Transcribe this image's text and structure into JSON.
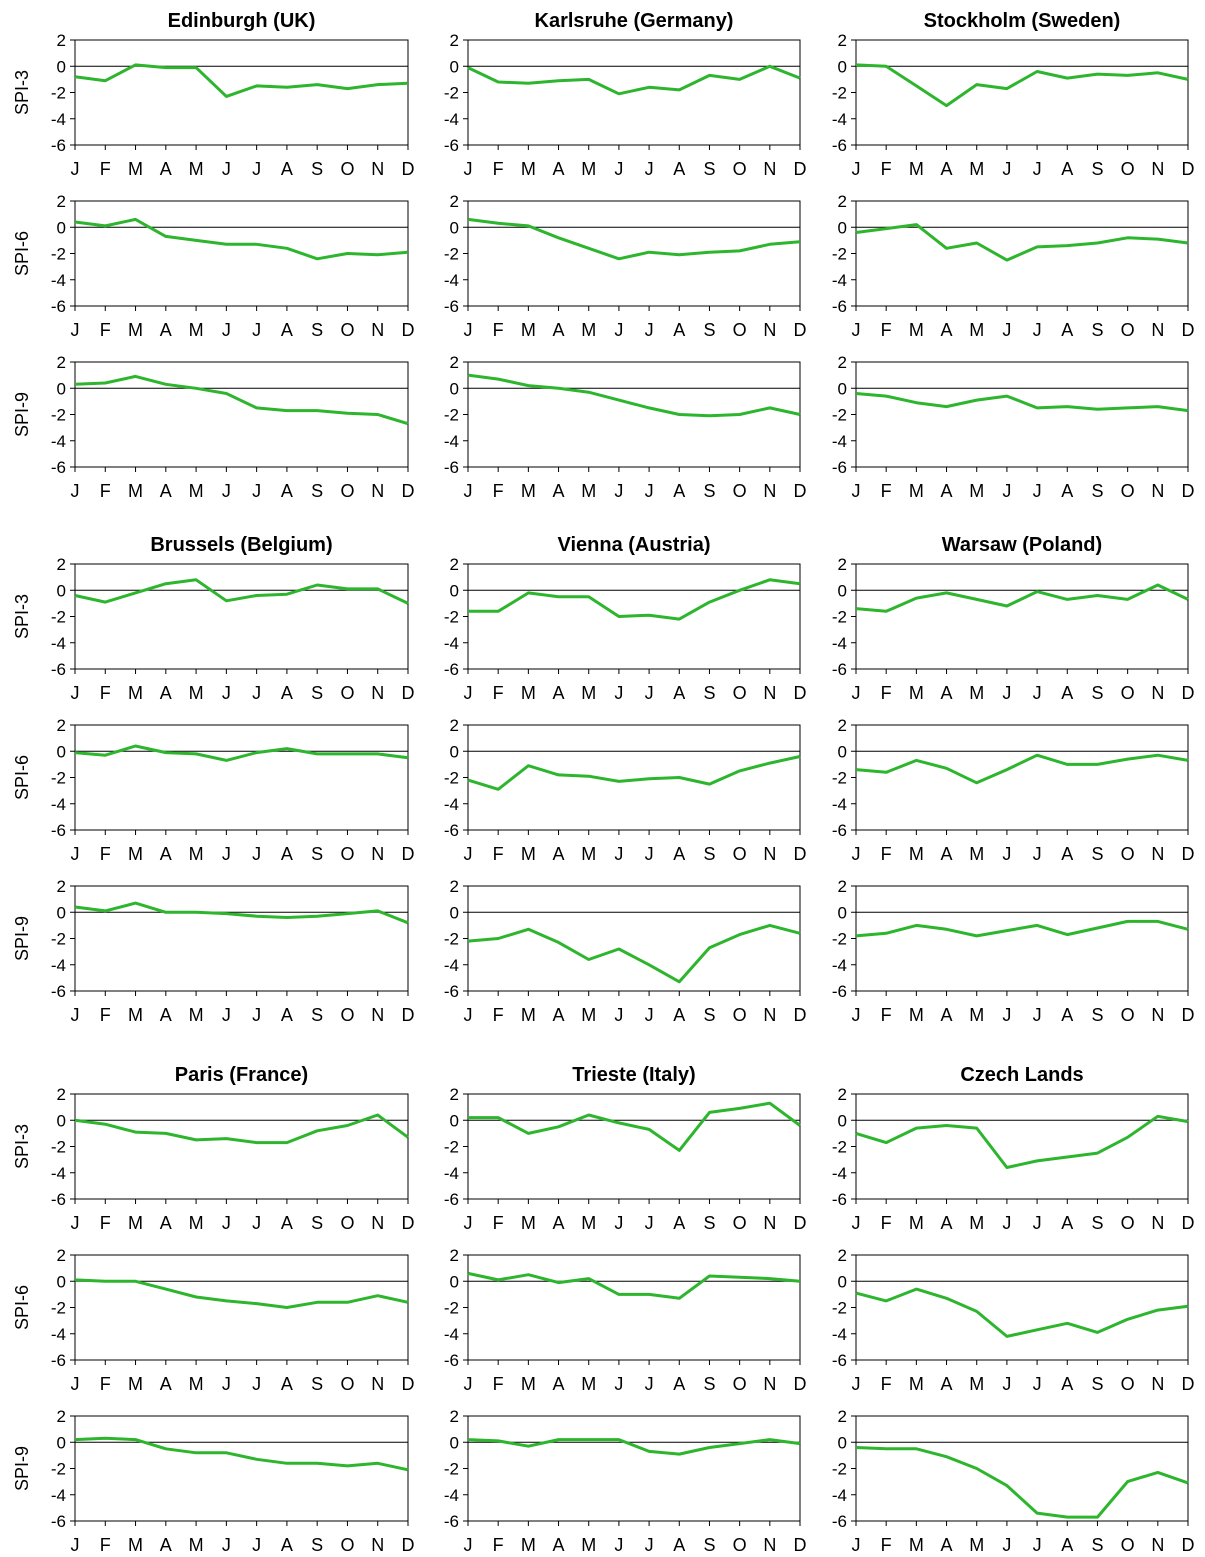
{
  "colors": {
    "line": "#2db52d",
    "axis": "#000000",
    "zero_line": "#000000",
    "text": "#000000"
  },
  "months": [
    "J",
    "F",
    "M",
    "A",
    "M",
    "J",
    "J",
    "A",
    "S",
    "O",
    "N",
    "D"
  ],
  "y_ticks": [
    "2",
    "0",
    "-2",
    "-4",
    "-6"
  ],
  "indices": [
    "SPI-3",
    "SPI-6",
    "SPI-9"
  ],
  "chart_data": [
    {
      "type": "line",
      "title": "Edinburgh (UK)",
      "group": 0,
      "col": 0,
      "ylim": [
        -6,
        2
      ],
      "categories": [
        "J",
        "F",
        "M",
        "A",
        "M",
        "J",
        "J",
        "A",
        "S",
        "O",
        "N",
        "D"
      ],
      "series": [
        {
          "name": "SPI-3",
          "values": [
            -0.8,
            -1.1,
            0.1,
            -0.1,
            -0.1,
            -2.3,
            -1.5,
            -1.6,
            -1.4,
            -1.7,
            -1.4,
            -1.3
          ]
        },
        {
          "name": "SPI-6",
          "values": [
            0.4,
            0.1,
            0.6,
            -0.7,
            -1.0,
            -1.3,
            -1.3,
            -1.6,
            -2.4,
            -2.0,
            -2.1,
            -1.9
          ]
        },
        {
          "name": "SPI-9",
          "values": [
            0.3,
            0.4,
            0.9,
            0.3,
            0.0,
            -0.4,
            -1.5,
            -1.7,
            -1.7,
            -1.9,
            -2.0,
            -2.7
          ]
        }
      ]
    },
    {
      "type": "line",
      "title": "Karlsruhe (Germany)",
      "group": 0,
      "col": 1,
      "ylim": [
        -6,
        2
      ],
      "categories": [
        "J",
        "F",
        "M",
        "A",
        "M",
        "J",
        "J",
        "A",
        "S",
        "O",
        "N",
        "D"
      ],
      "series": [
        {
          "name": "SPI-3",
          "values": [
            -0.1,
            -1.2,
            -1.3,
            -1.1,
            -1.0,
            -2.1,
            -1.6,
            -1.8,
            -0.7,
            -1.0,
            0.0,
            -0.9
          ]
        },
        {
          "name": "SPI-6",
          "values": [
            0.6,
            0.3,
            0.1,
            -0.8,
            -1.6,
            -2.4,
            -1.9,
            -2.1,
            -1.9,
            -1.8,
            -1.3,
            -1.1
          ]
        },
        {
          "name": "SPI-9",
          "values": [
            1.0,
            0.7,
            0.2,
            0.0,
            -0.3,
            -0.9,
            -1.5,
            -2.0,
            -2.1,
            -2.0,
            -1.5,
            -2.0
          ]
        }
      ]
    },
    {
      "type": "line",
      "title": "Stockholm (Sweden)",
      "group": 0,
      "col": 2,
      "ylim": [
        -6,
        2
      ],
      "categories": [
        "J",
        "F",
        "M",
        "A",
        "M",
        "J",
        "J",
        "A",
        "S",
        "O",
        "N",
        "D"
      ],
      "series": [
        {
          "name": "SPI-3",
          "values": [
            0.1,
            0.0,
            -1.5,
            -3.0,
            -1.4,
            -1.7,
            -0.4,
            -0.9,
            -0.6,
            -0.7,
            -0.5,
            -1.0
          ]
        },
        {
          "name": "SPI-6",
          "values": [
            -0.4,
            -0.1,
            0.2,
            -1.6,
            -1.2,
            -2.5,
            -1.5,
            -1.4,
            -1.2,
            -0.8,
            -0.9,
            -1.2
          ]
        },
        {
          "name": "SPI-9",
          "values": [
            -0.4,
            -0.6,
            -1.1,
            -1.4,
            -0.9,
            -0.6,
            -1.5,
            -1.4,
            -1.6,
            -1.5,
            -1.4,
            -1.7
          ]
        }
      ]
    },
    {
      "type": "line",
      "title": "Brussels (Belgium)",
      "group": 1,
      "col": 0,
      "ylim": [
        -6,
        2
      ],
      "categories": [
        "J",
        "F",
        "M",
        "A",
        "M",
        "J",
        "J",
        "A",
        "S",
        "O",
        "N",
        "D"
      ],
      "series": [
        {
          "name": "SPI-3",
          "values": [
            -0.4,
            -0.9,
            -0.2,
            0.5,
            0.8,
            -0.8,
            -0.4,
            -0.3,
            0.4,
            0.1,
            0.1,
            -1.0
          ]
        },
        {
          "name": "SPI-6",
          "values": [
            -0.1,
            -0.3,
            0.4,
            -0.1,
            -0.2,
            -0.7,
            -0.1,
            0.2,
            -0.2,
            -0.2,
            -0.2,
            -0.5
          ]
        },
        {
          "name": "SPI-9",
          "values": [
            0.4,
            0.1,
            0.7,
            0.0,
            0.0,
            -0.1,
            -0.3,
            -0.4,
            -0.3,
            -0.1,
            0.1,
            -0.8
          ]
        }
      ]
    },
    {
      "type": "line",
      "title": "Vienna (Austria)",
      "group": 1,
      "col": 1,
      "ylim": [
        -6,
        2
      ],
      "categories": [
        "J",
        "F",
        "M",
        "A",
        "M",
        "J",
        "J",
        "A",
        "S",
        "O",
        "N",
        "D"
      ],
      "series": [
        {
          "name": "SPI-3",
          "values": [
            -1.6,
            -1.6,
            -0.2,
            -0.5,
            -0.5,
            -2.0,
            -1.9,
            -2.2,
            -0.9,
            0.0,
            0.8,
            0.5
          ]
        },
        {
          "name": "SPI-6",
          "values": [
            -2.2,
            -2.9,
            -1.1,
            -1.8,
            -1.9,
            -2.3,
            -2.1,
            -2.0,
            -2.5,
            -1.5,
            -0.9,
            -0.4
          ]
        },
        {
          "name": "SPI-9",
          "values": [
            -2.2,
            -2.0,
            -1.3,
            -2.3,
            -3.6,
            -2.8,
            -4.0,
            -5.3,
            -2.7,
            -1.7,
            -1.0,
            -1.6
          ]
        }
      ]
    },
    {
      "type": "line",
      "title": "Warsaw (Poland)",
      "group": 1,
      "col": 2,
      "ylim": [
        -6,
        2
      ],
      "categories": [
        "J",
        "F",
        "M",
        "A",
        "M",
        "J",
        "J",
        "A",
        "S",
        "O",
        "N",
        "D"
      ],
      "series": [
        {
          "name": "SPI-3",
          "values": [
            -1.4,
            -1.6,
            -0.6,
            -0.2,
            -0.7,
            -1.2,
            -0.1,
            -0.7,
            -0.4,
            -0.7,
            0.4,
            -0.7
          ]
        },
        {
          "name": "SPI-6",
          "values": [
            -1.4,
            -1.6,
            -0.7,
            -1.3,
            -2.4,
            -1.4,
            -0.3,
            -1.0,
            -1.0,
            -0.6,
            -0.3,
            -0.7
          ]
        },
        {
          "name": "SPI-9",
          "values": [
            -1.8,
            -1.6,
            -1.0,
            -1.3,
            -1.8,
            -1.4,
            -1.0,
            -1.7,
            -1.2,
            -0.7,
            -0.7,
            -1.3
          ]
        }
      ]
    },
    {
      "type": "line",
      "title": "Paris (France)",
      "group": 2,
      "col": 0,
      "ylim": [
        -6,
        2
      ],
      "categories": [
        "J",
        "F",
        "M",
        "A",
        "M",
        "J",
        "J",
        "A",
        "S",
        "O",
        "N",
        "D"
      ],
      "series": [
        {
          "name": "SPI-3",
          "values": [
            0.0,
            -0.3,
            -0.9,
            -1.0,
            -1.5,
            -1.4,
            -1.7,
            -1.7,
            -0.8,
            -0.4,
            0.4,
            -1.3
          ]
        },
        {
          "name": "SPI-6",
          "values": [
            0.1,
            0.0,
            0.0,
            -0.6,
            -1.2,
            -1.5,
            -1.7,
            -2.0,
            -1.6,
            -1.6,
            -1.1,
            -1.6
          ]
        },
        {
          "name": "SPI-9",
          "values": [
            0.2,
            0.3,
            0.2,
            -0.5,
            -0.8,
            -0.8,
            -1.3,
            -1.6,
            -1.6,
            -1.8,
            -1.6,
            -2.1
          ]
        }
      ]
    },
    {
      "type": "line",
      "title": "Trieste (Italy)",
      "group": 2,
      "col": 1,
      "ylim": [
        -6,
        2
      ],
      "categories": [
        "J",
        "F",
        "M",
        "A",
        "M",
        "J",
        "J",
        "A",
        "S",
        "O",
        "N",
        "D"
      ],
      "series": [
        {
          "name": "SPI-3",
          "values": [
            0.2,
            0.2,
            -1.0,
            -0.5,
            0.4,
            -0.2,
            -0.7,
            -2.3,
            0.6,
            0.9,
            1.3,
            -0.4
          ]
        },
        {
          "name": "SPI-6",
          "values": [
            0.6,
            0.1,
            0.5,
            -0.1,
            0.2,
            -1.0,
            -1.0,
            -1.3,
            0.4,
            0.3,
            0.2,
            0.0
          ]
        },
        {
          "name": "SPI-9",
          "values": [
            0.2,
            0.1,
            -0.3,
            0.2,
            0.2,
            0.2,
            -0.7,
            -0.9,
            -0.4,
            -0.1,
            0.2,
            -0.1
          ]
        }
      ]
    },
    {
      "type": "line",
      "title": "Czech Lands",
      "group": 2,
      "col": 2,
      "ylim": [
        -6,
        2
      ],
      "categories": [
        "J",
        "F",
        "M",
        "A",
        "M",
        "J",
        "J",
        "A",
        "S",
        "O",
        "N",
        "D"
      ],
      "series": [
        {
          "name": "SPI-3",
          "values": [
            -1.0,
            -1.7,
            -0.6,
            -0.4,
            -0.6,
            -3.6,
            -3.1,
            -2.8,
            -2.5,
            -1.3,
            0.3,
            -0.1
          ]
        },
        {
          "name": "SPI-6",
          "values": [
            -0.9,
            -1.5,
            -0.6,
            -1.3,
            -2.3,
            -4.2,
            -3.7,
            -3.2,
            -3.9,
            -2.9,
            -2.2,
            -1.9
          ]
        },
        {
          "name": "SPI-9",
          "values": [
            -0.4,
            -0.5,
            -0.5,
            -1.1,
            -2.0,
            -3.3,
            -5.4,
            -5.7,
            -5.7,
            -3.0,
            -2.3,
            -3.1
          ]
        }
      ]
    }
  ]
}
